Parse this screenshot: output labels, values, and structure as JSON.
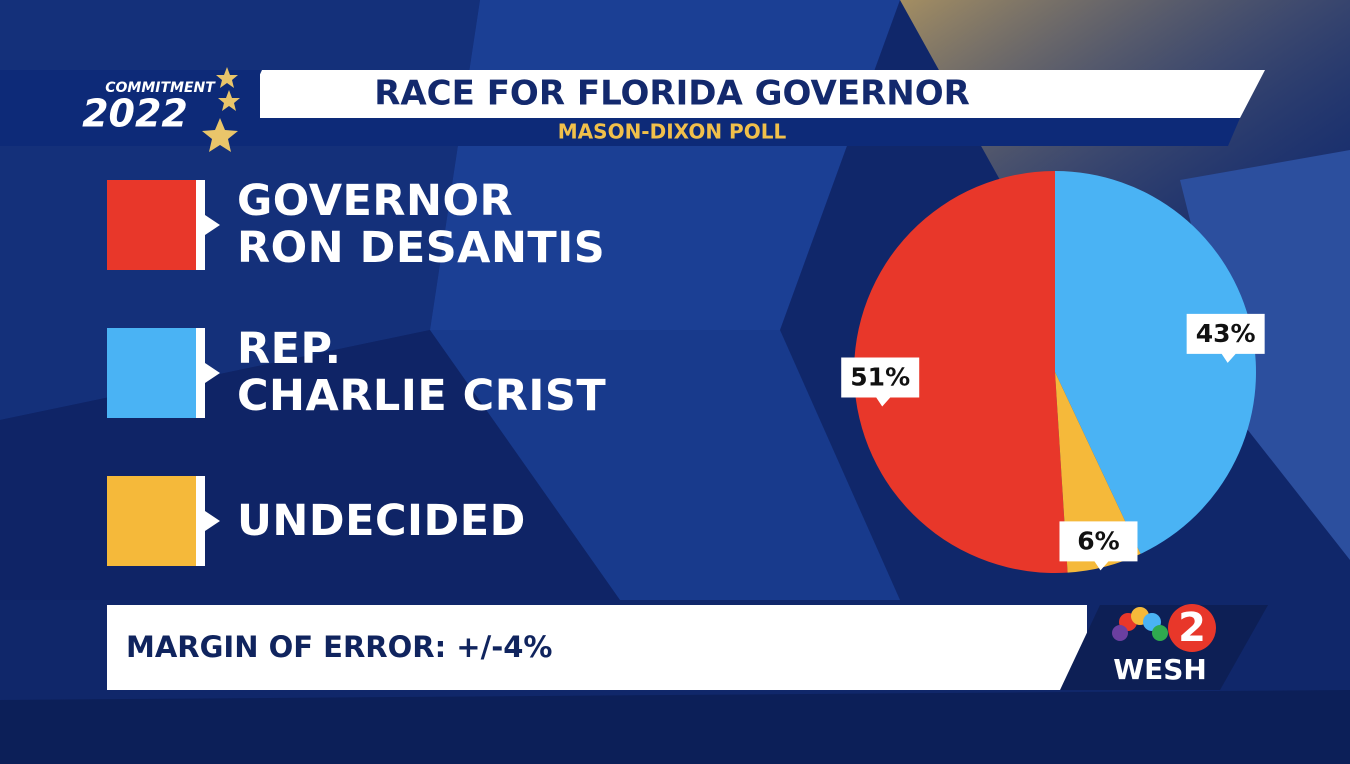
{
  "brand": {
    "commitment": "COMMITMENT",
    "year": "2022",
    "station_number": "2",
    "station": "WESH"
  },
  "chart_data": {
    "type": "pie",
    "title": "RACE FOR FLORIDA GOVERNOR",
    "subtitle": "MASON-DIXON POLL",
    "series": [
      {
        "name": "GOVERNOR\nRON DESANTIS",
        "color": "#e8372a",
        "values": [
          51
        ],
        "value_labels": [
          "51%"
        ]
      },
      {
        "name": "REP.\nCHARLIE CRIST",
        "color": "#4ab3f4",
        "values": [
          43
        ],
        "value_labels": [
          "43%"
        ]
      },
      {
        "name": "UNDECIDED",
        "color": "#f5b93a",
        "values": [
          6
        ],
        "value_labels": [
          "6%"
        ]
      }
    ],
    "note": "MARGIN OF ERROR: +/-4%"
  }
}
